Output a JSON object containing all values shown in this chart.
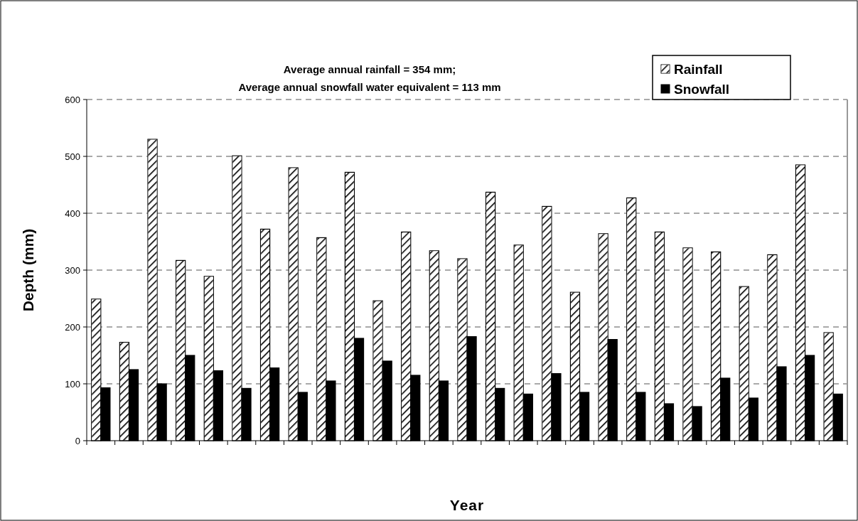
{
  "chart_data": {
    "type": "bar",
    "title": "Average annual rainfall = 354 mm;",
    "subtitle": "Average annual snowfall water equivalent = 113 mm",
    "xlabel": "Year",
    "ylabel": "Depth (mm)",
    "categories": [
      null,
      null,
      null,
      null,
      null,
      null,
      null,
      null,
      null,
      null,
      null,
      null,
      null,
      null,
      null,
      null,
      null,
      null,
      null,
      null,
      null,
      null,
      null,
      null,
      null,
      null,
      null
    ],
    "series": [
      {
        "name": "Rainfall",
        "color": "#ffffff",
        "values": [
          249,
          173,
          530,
          317,
          289,
          501,
          372,
          480,
          357,
          472,
          246,
          367,
          334,
          320,
          437,
          344,
          412,
          261,
          364,
          427,
          367,
          339,
          332,
          271,
          327,
          485,
          190
        ]
      },
      {
        "name": "Snowfall",
        "color": "#000000",
        "values": [
          93,
          125,
          100,
          150,
          123,
          92,
          128,
          85,
          105,
          180,
          140,
          115,
          105,
          183,
          92,
          82,
          118,
          85,
          178,
          85,
          65,
          60,
          110,
          75,
          130,
          150,
          82
        ]
      }
    ],
    "ylim": [
      0,
      600
    ],
    "yticks": [
      0,
      100,
      200,
      300,
      400,
      500,
      600
    ],
    "grid": "y",
    "legend": "top right"
  }
}
